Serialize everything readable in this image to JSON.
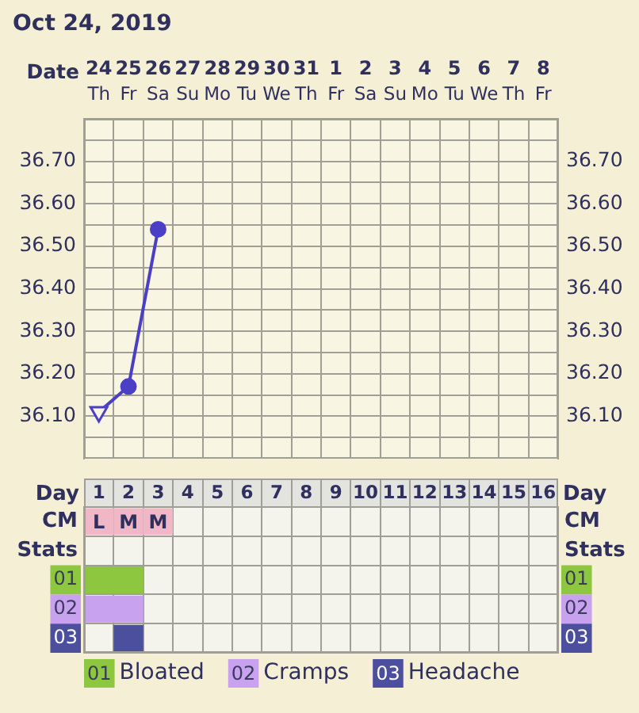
{
  "chart_data": [
    {
      "type": "line",
      "title": "Oct 24, 2019",
      "xlabel": "Date",
      "categories": [
        "24\nTh",
        "25\nFr",
        "26\nSa",
        "27\nSu",
        "28\nMo",
        "29\nTu",
        "30\nWe",
        "31\nTh",
        "1\nFr",
        "2\nSa",
        "3\nSu",
        "4\nMo",
        "5\nTu",
        "6\nWe",
        "7\nTh",
        "8\nFr"
      ],
      "series": [
        {
          "color": "#4b3fc6",
          "values": [
            36.11,
            36.17,
            36.54,
            null,
            null,
            null,
            null,
            null,
            null,
            null,
            null,
            null,
            null,
            null,
            null,
            null
          ],
          "marker": [
            "triangle",
            "circle",
            "circle",
            null,
            null,
            null,
            null,
            null,
            null,
            null,
            null,
            null,
            null,
            null,
            null,
            null
          ]
        }
      ],
      "ylim": [
        36.0,
        36.8
      ],
      "yticks": [
        {
          "value": 36.05,
          "label": null
        },
        {
          "value": 36.1,
          "label": "36.10"
        },
        {
          "value": 36.15,
          "label": null
        },
        {
          "value": 36.2,
          "label": "36.20"
        },
        {
          "value": 36.25,
          "label": null
        },
        {
          "value": 36.3,
          "label": "36.30"
        },
        {
          "value": 36.35,
          "label": null
        },
        {
          "value": 36.4,
          "label": "36.40"
        },
        {
          "value": 36.45,
          "label": null
        },
        {
          "value": 36.5,
          "label": "36.50"
        },
        {
          "value": 36.55,
          "label": null
        },
        {
          "value": 36.6,
          "label": "36.60"
        },
        {
          "value": 36.65,
          "label": null
        },
        {
          "value": 36.7,
          "label": "36.70"
        },
        {
          "value": 36.75,
          "label": null
        }
      ],
      "y2lim": [
        36.0,
        36.8
      ],
      "y2ticks": [
        {
          "value": 36.05,
          "label": null
        },
        {
          "value": 36.1,
          "label": "36.10"
        },
        {
          "value": 36.15,
          "label": null
        },
        {
          "value": 36.2,
          "label": "36.20"
        },
        {
          "value": 36.25,
          "label": null
        },
        {
          "value": 36.3,
          "label": "36.30"
        },
        {
          "value": 36.35,
          "label": null
        },
        {
          "value": 36.4,
          "label": "36.40"
        },
        {
          "value": 36.45,
          "label": null
        },
        {
          "value": 36.5,
          "label": "36.50"
        },
        {
          "value": 36.55,
          "label": null
        },
        {
          "value": 36.6,
          "label": "36.60"
        },
        {
          "value": 36.65,
          "label": null
        },
        {
          "value": 36.7,
          "label": "36.70"
        },
        {
          "value": 36.75,
          "label": null
        }
      ],
      "grid": true
    },
    {
      "type": "bar",
      "orientation": "horizontal",
      "xlabel": "Day",
      "categories": [
        "CM",
        "Stats",
        "01",
        "02",
        "03"
      ],
      "y2_categories": [
        "CM",
        "Stats",
        "01",
        "02",
        "03"
      ],
      "xlim": [
        0.5,
        16.5
      ],
      "xticks": [
        1,
        {
          "value": 1.5,
          "label": null
        },
        2,
        {
          "value": 2.5,
          "label": null
        },
        3,
        {
          "value": 3.5,
          "label": null
        },
        4,
        {
          "value": 4.5,
          "label": null
        },
        5,
        {
          "value": 5.5,
          "label": null
        },
        6,
        {
          "value": 6.5,
          "label": null
        },
        7,
        {
          "value": 7.5,
          "label": null
        },
        8,
        {
          "value": 8.5,
          "label": null
        },
        9,
        {
          "value": 9.5,
          "label": null
        },
        10,
        {
          "value": 10.5,
          "label": null
        },
        11,
        {
          "value": 11.5,
          "label": null
        },
        12,
        {
          "value": 12.5,
          "label": null
        },
        13,
        {
          "value": 13.5,
          "label": null
        },
        14,
        {
          "value": 14.5,
          "label": null
        },
        15,
        {
          "value": 15.5,
          "label": null
        },
        16
      ],
      "series": [
        {
          "color": "#f0b7c6",
          "values": [
            1,
            null,
            null,
            null,
            null
          ],
          "base": [
            0.5,
            null,
            null,
            null,
            null
          ],
          "value_labels": [
            "L",
            null,
            null,
            null,
            null
          ]
        },
        {
          "color": "#f0b7c6",
          "values": [
            1,
            null,
            null,
            null,
            null
          ],
          "base": [
            1.5,
            null,
            null,
            null,
            null
          ],
          "value_labels": [
            "M",
            null,
            null,
            null,
            null
          ]
        },
        {
          "color": "#f0b7c6",
          "values": [
            1,
            null,
            null,
            null,
            null
          ],
          "base": [
            2.5,
            null,
            null,
            null,
            null
          ],
          "value_labels": [
            "M",
            null,
            null,
            null,
            null
          ]
        },
        {
          "name": "Bloated",
          "color": "#8dc63f",
          "values": [
            null,
            null,
            2,
            null,
            null
          ],
          "base": [
            null,
            null,
            0.5,
            null,
            null
          ]
        },
        {
          "name": "Cramps",
          "color": "#c8a2ef",
          "values": [
            null,
            null,
            null,
            2,
            null
          ],
          "base": [
            null,
            null,
            null,
            0.5,
            null
          ]
        },
        {
          "name": "Headache",
          "color": "#4b4f9e",
          "values": [
            null,
            null,
            null,
            null,
            1
          ],
          "base": [
            null,
            null,
            null,
            null,
            1.5
          ]
        }
      ],
      "legend": "bottom",
      "grid": true
    }
  ]
}
